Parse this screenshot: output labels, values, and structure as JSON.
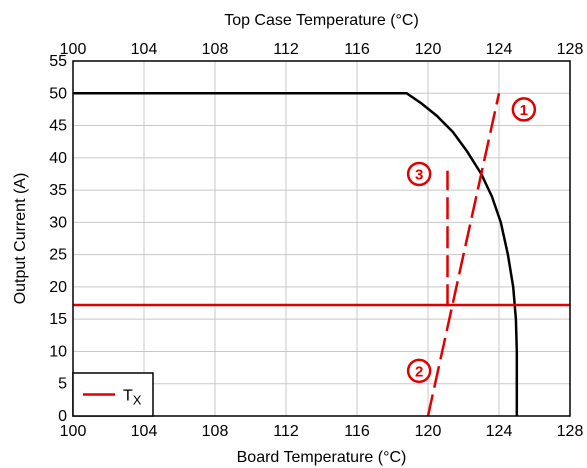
{
  "chart_data": {
    "type": "line",
    "title": "",
    "xlabel_bottom": "Board Temperature (°C)",
    "xlabel_top": "Top Case Temperature (°C)",
    "ylabel": "Output Current (A)",
    "xlim": [
      100,
      128
    ],
    "ylim": [
      0,
      55
    ],
    "x_ticks": [
      "100",
      "104",
      "108",
      "112",
      "116",
      "120",
      "124",
      "128"
    ],
    "x_ticks_top": [
      "100",
      "104",
      "108",
      "112",
      "116",
      "120",
      "124",
      "128"
    ],
    "y_ticks": [
      "0",
      "5",
      "10",
      "15",
      "20",
      "25",
      "30",
      "35",
      "40",
      "45",
      "50",
      "55"
    ],
    "grid": true,
    "series": [
      {
        "color": "#000000",
        "style": "solid",
        "points": [
          [
            100,
            50
          ],
          [
            118.8,
            50
          ],
          [
            119.6,
            48.5
          ],
          [
            120.5,
            46.5
          ],
          [
            121.4,
            44
          ],
          [
            122.2,
            41
          ],
          [
            123,
            37.5
          ],
          [
            123.6,
            34
          ],
          [
            124.1,
            30
          ],
          [
            124.5,
            25
          ],
          [
            124.8,
            20
          ],
          [
            124.95,
            15
          ],
          [
            125,
            10
          ],
          [
            125,
            0
          ]
        ]
      },
      {
        "color": "#e00000",
        "style": "dashed",
        "points": [
          [
            120,
            0
          ],
          [
            124,
            50
          ]
        ]
      },
      {
        "color": "#e00000",
        "style": "dashed",
        "points": [
          [
            121.1,
            17
          ],
          [
            121.1,
            38
          ]
        ]
      },
      {
        "color": "#e00000",
        "style": "solid",
        "points": [
          [
            100,
            17.2
          ],
          [
            128,
            17.2
          ]
        ]
      }
    ],
    "callouts": [
      {
        "label": "1",
        "x": 125.4,
        "y": 47.5
      },
      {
        "label": "2",
        "x": 119.5,
        "y": 7
      },
      {
        "label": "3",
        "x": 119.5,
        "y": 37.5
      }
    ],
    "legend": {
      "position": "bottom-left",
      "entries": [
        {
          "label": "T",
          "subscript": "X",
          "color": "#e00000"
        }
      ]
    }
  }
}
